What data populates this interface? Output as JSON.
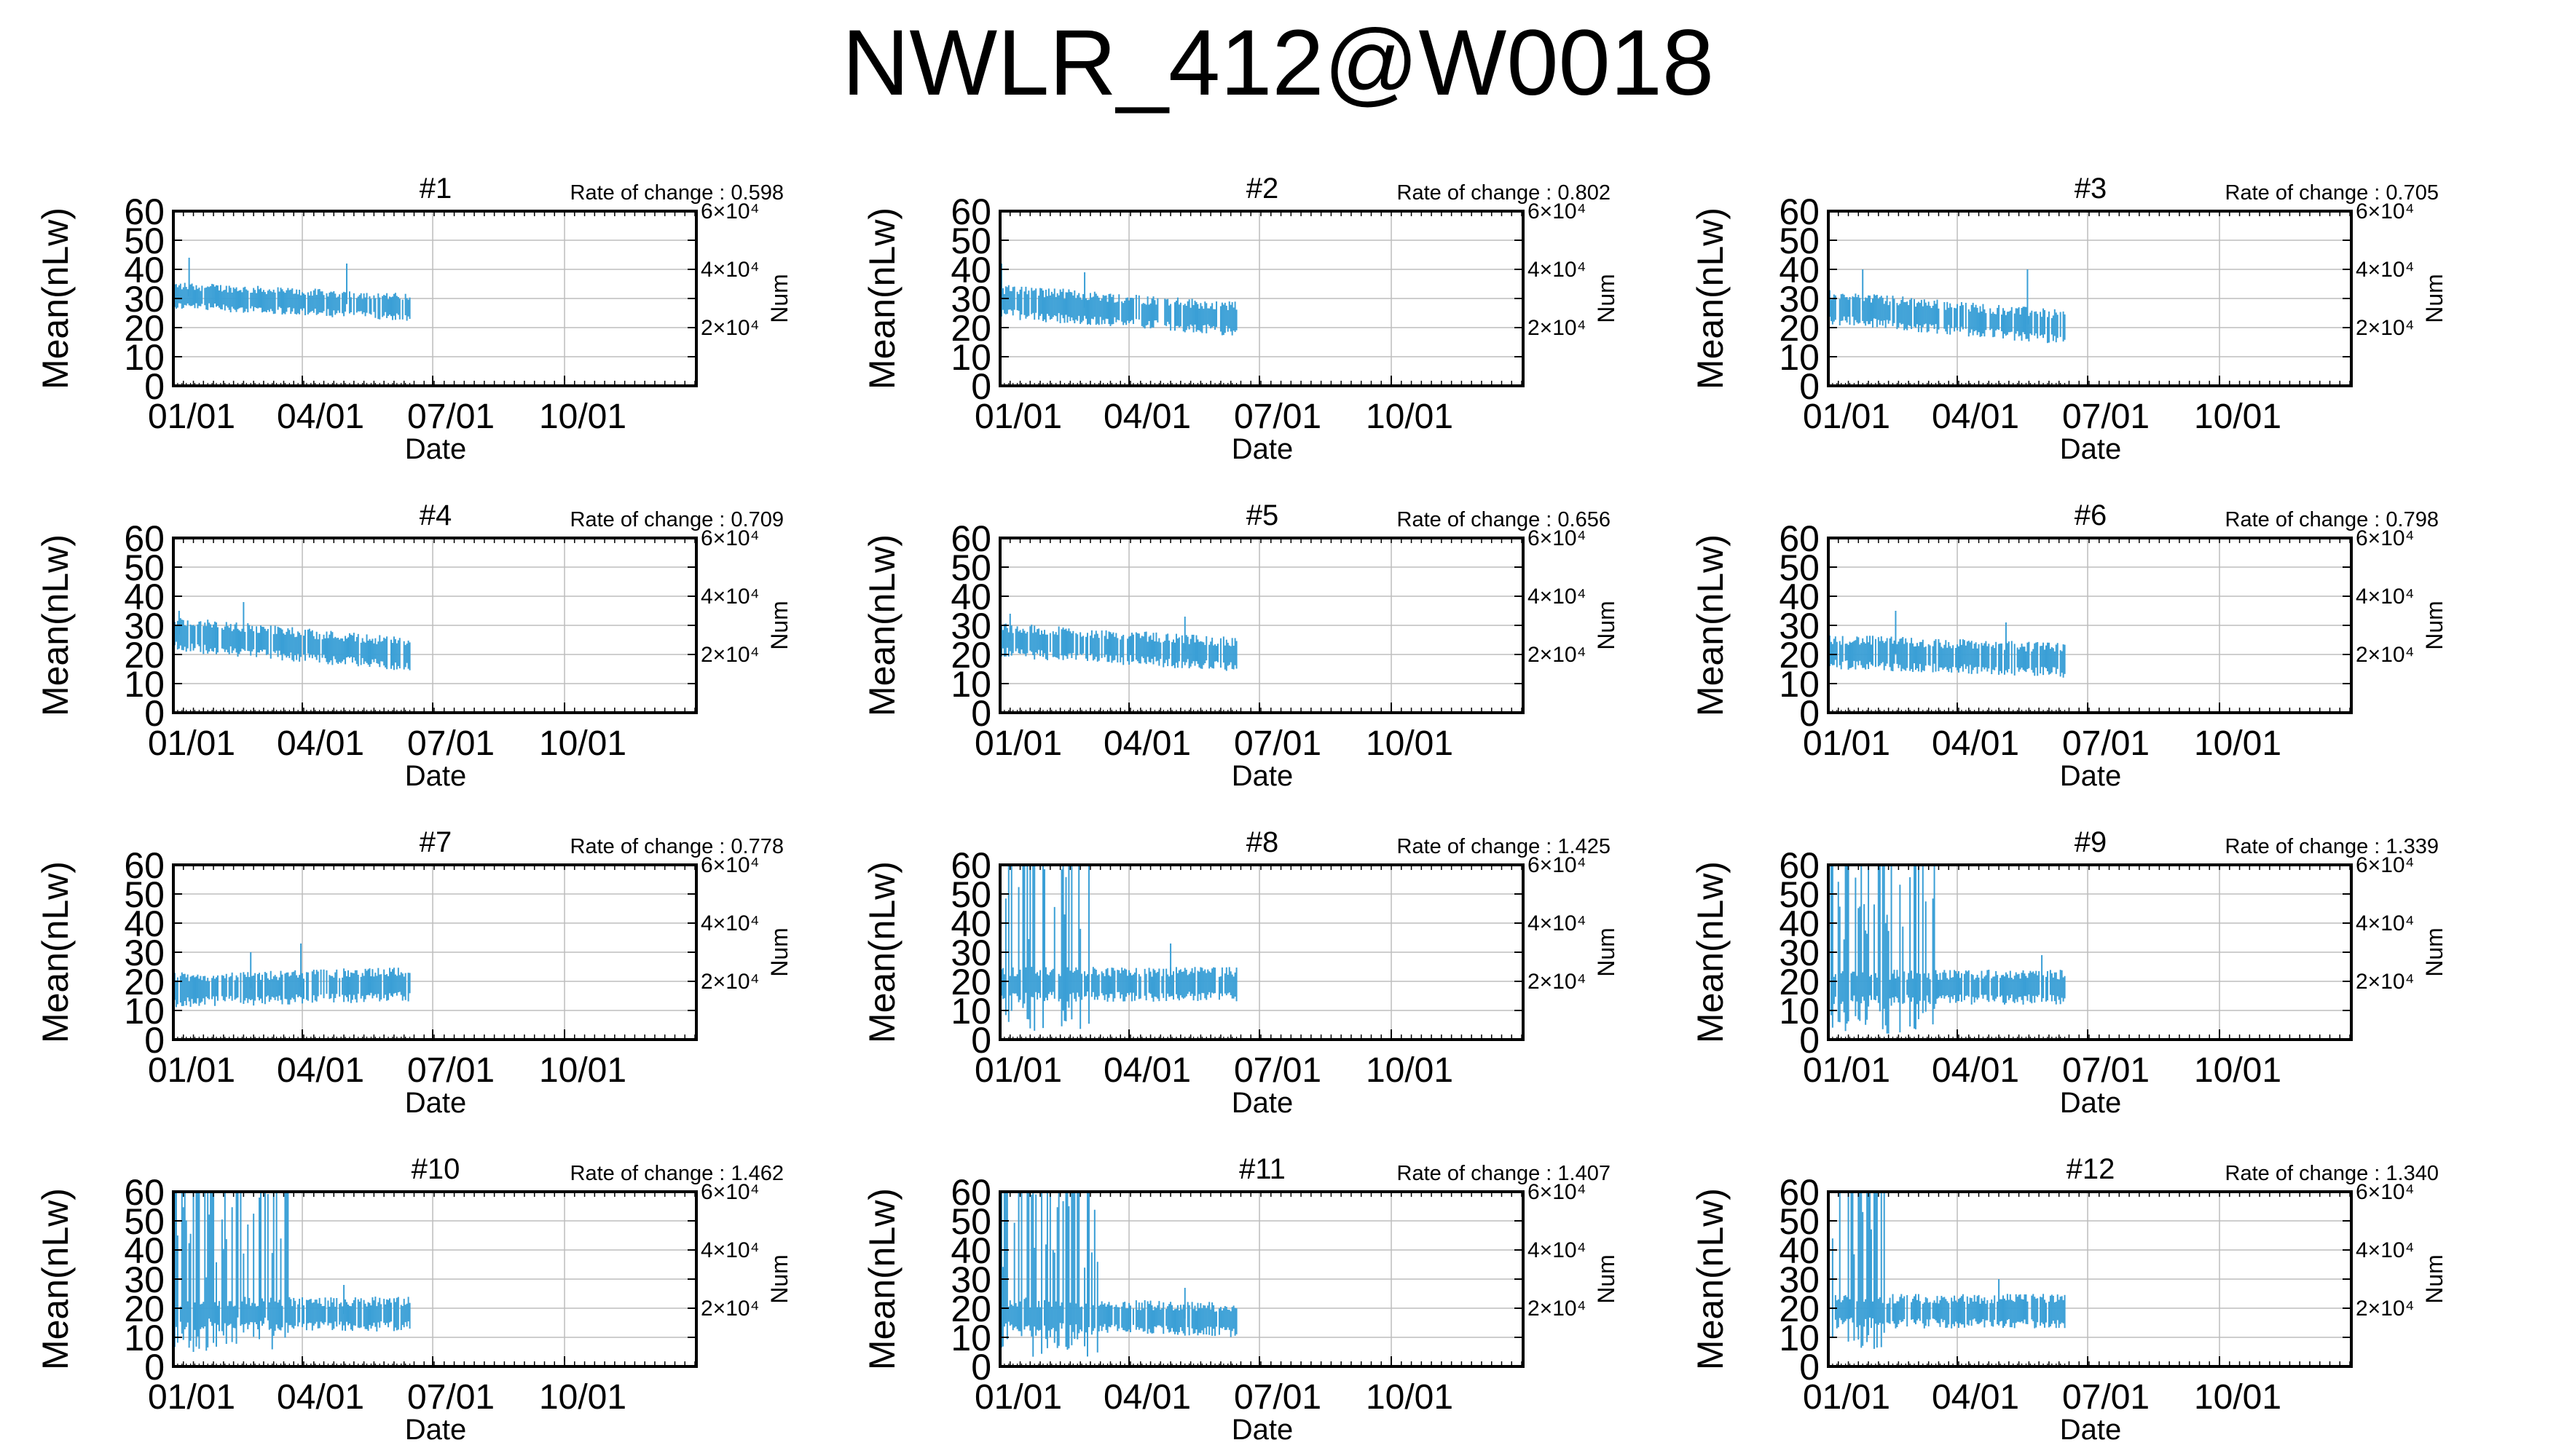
{
  "title": "NWLR_412@W0018",
  "x_tick_labels": [
    "01/01",
    "04/01",
    "07/01",
    "10/01"
  ],
  "x_label": "Date",
  "y_label": "Mean(nLw)",
  "y2_label": "Num",
  "y_tick_labels": [
    "0",
    "10",
    "20",
    "30",
    "40",
    "50",
    "60"
  ],
  "y2_tick_labels": [
    "2×10⁴",
    "4×10⁴",
    "6×10⁴"
  ],
  "rate_prefix": "Rate of change : ",
  "colors": {
    "series": "#3a9fd6",
    "axis": "#000000",
    "grid": "#bdbdbd"
  },
  "chart_data": [
    {
      "type": "line",
      "title": "#1",
      "rate_of_change": "0.598",
      "ylim": [
        0,
        60
      ],
      "y2lim": [
        0,
        60000
      ],
      "x_day_range": [
        1,
        366
      ],
      "data_end_day": 166,
      "mean_level": [
        31,
        27
      ],
      "spread": 4,
      "unstable_period": null,
      "unstable_low": null,
      "unstable_high": null,
      "spikes": [
        {
          "day": 12,
          "value": 44
        },
        {
          "day": 122,
          "value": 42
        }
      ]
    },
    {
      "type": "line",
      "title": "#2",
      "rate_of_change": "0.802",
      "ylim": [
        0,
        60
      ],
      "y2lim": [
        0,
        60000
      ],
      "x_day_range": [
        1,
        366
      ],
      "data_end_day": 166,
      "mean_level": [
        29,
        23
      ],
      "spread": 5,
      "unstable_period": null,
      "unstable_low": null,
      "unstable_high": null,
      "spikes": [
        {
          "day": 2,
          "value": 42
        },
        {
          "day": 60,
          "value": 39
        }
      ]
    },
    {
      "type": "line",
      "title": "#3",
      "rate_of_change": "0.705",
      "ylim": [
        0,
        60
      ],
      "y2lim": [
        0,
        60000
      ],
      "x_day_range": [
        1,
        366
      ],
      "data_end_day": 166,
      "mean_level": [
        27,
        20
      ],
      "spread": 5,
      "unstable_period": null,
      "unstable_low": null,
      "unstable_high": null,
      "spikes": [
        {
          "day": 25,
          "value": 40
        },
        {
          "day": 140,
          "value": 40
        }
      ]
    },
    {
      "type": "line",
      "title": "#4",
      "rate_of_change": "0.709",
      "ylim": [
        0,
        60
      ],
      "y2lim": [
        0,
        60000
      ],
      "x_day_range": [
        1,
        366
      ],
      "data_end_day": 166,
      "mean_level": [
        27,
        20
      ],
      "spread": 5,
      "unstable_period": null,
      "unstable_low": null,
      "unstable_high": null,
      "spikes": [
        {
          "day": 50,
          "value": 38
        },
        {
          "day": 5,
          "value": 35
        }
      ]
    },
    {
      "type": "line",
      "title": "#5",
      "rate_of_change": "0.656",
      "ylim": [
        0,
        60
      ],
      "y2lim": [
        0,
        60000
      ],
      "x_day_range": [
        1,
        366
      ],
      "data_end_day": 166,
      "mean_level": [
        25,
        20
      ],
      "spread": 5,
      "unstable_period": null,
      "unstable_low": null,
      "unstable_high": null,
      "spikes": [
        {
          "day": 8,
          "value": 34
        },
        {
          "day": 130,
          "value": 33
        }
      ]
    },
    {
      "type": "line",
      "title": "#6",
      "rate_of_change": "0.798",
      "ylim": [
        0,
        60
      ],
      "y2lim": [
        0,
        60000
      ],
      "x_day_range": [
        1,
        366
      ],
      "data_end_day": 166,
      "mean_level": [
        21,
        18
      ],
      "spread": 5,
      "unstable_period": null,
      "unstable_low": null,
      "unstable_high": null,
      "spikes": [
        {
          "day": 48,
          "value": 35
        },
        {
          "day": 125,
          "value": 31
        }
      ]
    },
    {
      "type": "line",
      "title": "#7",
      "rate_of_change": "0.778",
      "ylim": [
        0,
        60
      ],
      "y2lim": [
        0,
        60000
      ],
      "x_day_range": [
        1,
        366
      ],
      "data_end_day": 166,
      "mean_level": [
        17,
        19
      ],
      "spread": 5,
      "unstable_period": null,
      "unstable_low": null,
      "unstable_high": null,
      "spikes": [
        {
          "day": 90,
          "value": 33
        },
        {
          "day": 55,
          "value": 30
        }
      ]
    },
    {
      "type": "line",
      "title": "#8",
      "rate_of_change": "1.425",
      "ylim": [
        0,
        60
      ],
      "y2lim": [
        0,
        60000
      ],
      "x_day_range": [
        1,
        366
      ],
      "data_end_day": 166,
      "mean_level": [
        19,
        19
      ],
      "spread": 5,
      "unstable_period": [
        1,
        70
      ],
      "unstable_low": 3,
      "unstable_high": 60,
      "spikes": [
        {
          "day": 120,
          "value": 33
        }
      ]
    },
    {
      "type": "line",
      "title": "#9",
      "rate_of_change": "1.339",
      "ylim": [
        0,
        60
      ],
      "y2lim": [
        0,
        60000
      ],
      "x_day_range": [
        1,
        366
      ],
      "data_end_day": 166,
      "mean_level": [
        18,
        18
      ],
      "spread": 5,
      "unstable_period": [
        1,
        78
      ],
      "unstable_low": 2,
      "unstable_high": 60,
      "spikes": [
        {
          "day": 150,
          "value": 29
        }
      ]
    },
    {
      "type": "line",
      "title": "#10",
      "rate_of_change": "1.462",
      "ylim": [
        0,
        60
      ],
      "y2lim": [
        0,
        60000
      ],
      "x_day_range": [
        1,
        366
      ],
      "data_end_day": 166,
      "mean_level": [
        18,
        18
      ],
      "spread": 5,
      "unstable_period": [
        1,
        82
      ],
      "unstable_low": 5,
      "unstable_high": 60,
      "spikes": [
        {
          "day": 120,
          "value": 28
        }
      ]
    },
    {
      "type": "line",
      "title": "#11",
      "rate_of_change": "1.407",
      "ylim": [
        0,
        60
      ],
      "y2lim": [
        0,
        60000
      ],
      "x_day_range": [
        1,
        366
      ],
      "data_end_day": 166,
      "mean_level": [
        18,
        16
      ],
      "spread": 5,
      "unstable_period": [
        1,
        70
      ],
      "unstable_low": 3,
      "unstable_high": 60,
      "spikes": [
        {
          "day": 130,
          "value": 27
        }
      ]
    },
    {
      "type": "line",
      "title": "#12",
      "rate_of_change": "1.340",
      "ylim": [
        0,
        60
      ],
      "y2lim": [
        0,
        60000
      ],
      "x_day_range": [
        1,
        366
      ],
      "data_end_day": 166,
      "mean_level": [
        19,
        19
      ],
      "spread": 5,
      "unstable_period": [
        1,
        40
      ],
      "unstable_low": 5,
      "unstable_high": 60,
      "spikes": [
        {
          "day": 120,
          "value": 30
        }
      ]
    }
  ]
}
